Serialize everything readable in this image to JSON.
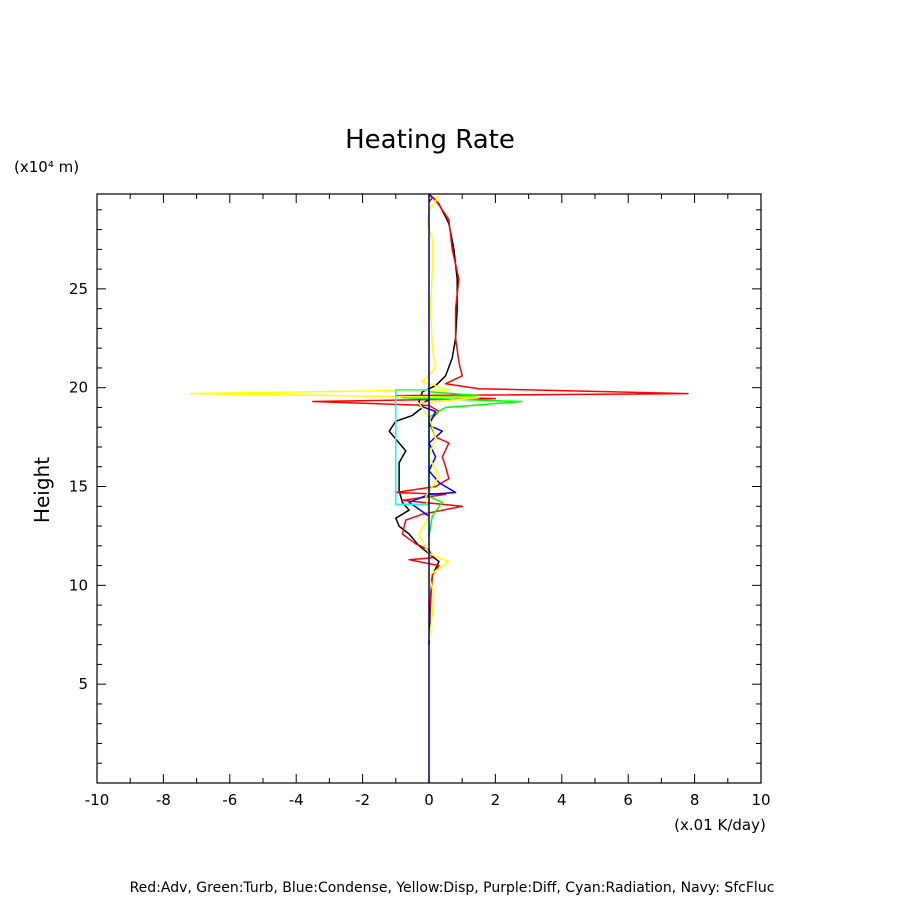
{
  "chart_data": {
    "type": "line",
    "title": "Heating Rate",
    "ylabel": "Height",
    "y_unit": "(x10⁴ m)",
    "x_unit": "(x.01 K/day)",
    "xlim": [
      -10,
      10
    ],
    "ylim": [
      0,
      29.8
    ],
    "x_ticks": [
      -10,
      -8,
      -6,
      -4,
      -2,
      0,
      2,
      4,
      6,
      8,
      10
    ],
    "y_ticks": [
      5,
      10,
      15,
      20,
      25
    ],
    "x_tick_labels": [
      "-10",
      "-8",
      "-6",
      "-4",
      "-2",
      "0",
      "2",
      "4",
      "6",
      "8",
      "10"
    ],
    "y_tick_labels": [
      "5",
      "10",
      "15",
      "20",
      "25"
    ],
    "grid": false,
    "legend_text": "Red:Adv, Green:Turb, Blue:Condense, Yellow:Disp, Purple:Diff, Cyan:Radiation, Navy: SfcFluc",
    "series": [
      {
        "color": "#000000",
        "points": [
          [
            0,
            7.0
          ],
          [
            0.05,
            9.5
          ],
          [
            0.1,
            10.5
          ],
          [
            0.3,
            11.2
          ],
          [
            0,
            11.6
          ],
          [
            -0.3,
            12.0
          ],
          [
            -0.6,
            12.6
          ],
          [
            -0.9,
            13.0
          ],
          [
            -1.0,
            13.4
          ],
          [
            -0.6,
            13.8
          ],
          [
            -0.8,
            14.2
          ],
          [
            -0.9,
            14.8
          ],
          [
            -0.9,
            15.5
          ],
          [
            -0.9,
            16.2
          ],
          [
            -0.7,
            16.8
          ],
          [
            -0.9,
            17.2
          ],
          [
            -1.2,
            17.8
          ],
          [
            -1.0,
            18.3
          ],
          [
            -0.5,
            18.6
          ],
          [
            -0.2,
            19.0
          ],
          [
            -0.3,
            19.3
          ],
          [
            -0.2,
            19.8
          ],
          [
            0.2,
            20.1
          ],
          [
            0.5,
            20.6
          ],
          [
            0.7,
            21.5
          ],
          [
            0.8,
            22.5
          ],
          [
            0.85,
            24.0
          ],
          [
            0.85,
            25.5
          ],
          [
            0.75,
            27.0
          ],
          [
            0.6,
            28.3
          ],
          [
            0.3,
            29.3
          ],
          [
            0,
            29.8
          ]
        ]
      },
      {
        "color": "#ff0000",
        "points": [
          [
            0,
            8.0
          ],
          [
            0.1,
            10.5
          ],
          [
            0.3,
            11.0
          ],
          [
            -0.6,
            11.3
          ],
          [
            0.1,
            11.4
          ],
          [
            0,
            11.8
          ],
          [
            -0.4,
            12.1
          ],
          [
            -0.8,
            12.6
          ],
          [
            -0.7,
            13.3
          ],
          [
            -0.2,
            13.6
          ],
          [
            1.0,
            14.0
          ],
          [
            -0.8,
            14.3
          ],
          [
            0.5,
            14.6
          ],
          [
            -1.0,
            14.7
          ],
          [
            0.2,
            15.0
          ],
          [
            0.6,
            15.4
          ],
          [
            0.5,
            16.0
          ],
          [
            0.4,
            16.5
          ],
          [
            0.6,
            17.2
          ],
          [
            0.2,
            17.5
          ],
          [
            0,
            18.3
          ],
          [
            0.3,
            18.8
          ],
          [
            0,
            19.1
          ],
          [
            -3.5,
            19.3
          ],
          [
            2.0,
            19.45
          ],
          [
            -1.0,
            19.6
          ],
          [
            7.8,
            19.7
          ],
          [
            1.5,
            19.95
          ],
          [
            0.5,
            20.2
          ],
          [
            1.0,
            20.6
          ],
          [
            0.9,
            21.3
          ],
          [
            0.8,
            22.5
          ],
          [
            0.8,
            24.0
          ],
          [
            0.9,
            25.5
          ],
          [
            0.7,
            27.0
          ],
          [
            0.6,
            28.5
          ],
          [
            0.2,
            29.5
          ],
          [
            0,
            29.8
          ]
        ]
      },
      {
        "color": "#00ff00",
        "points": [
          [
            0,
            12.5
          ],
          [
            0.1,
            13.5
          ],
          [
            0.4,
            14.2
          ],
          [
            0,
            14.5
          ],
          [
            0,
            15.5
          ],
          [
            0,
            18.5
          ],
          [
            0.5,
            19.0
          ],
          [
            2.8,
            19.3
          ],
          [
            -0.8,
            19.5
          ],
          [
            1.5,
            19.6
          ],
          [
            0,
            19.8
          ],
          [
            0,
            20.1
          ]
        ]
      },
      {
        "color": "#0000ff",
        "points": [
          [
            0,
            13.5
          ],
          [
            -0.6,
            14.2
          ],
          [
            0,
            14.6
          ],
          [
            0.8,
            14.7
          ],
          [
            0.3,
            15.2
          ],
          [
            0,
            15.8
          ],
          [
            0.2,
            16.5
          ],
          [
            0,
            17.2
          ],
          [
            0.4,
            17.8
          ],
          [
            0,
            18.1
          ],
          [
            0.2,
            18.8
          ],
          [
            -0.3,
            19.1
          ],
          [
            0,
            19.4
          ],
          [
            0,
            20
          ]
        ]
      },
      {
        "color": "#ffff00",
        "points": [
          [
            0,
            7.2
          ],
          [
            0.1,
            8.5
          ],
          [
            0.15,
            9.5
          ],
          [
            0,
            10.5
          ],
          [
            0.6,
            11.2
          ],
          [
            0,
            11.6
          ],
          [
            -0.3,
            12.6
          ],
          [
            0,
            13.5
          ],
          [
            -0.1,
            14.5
          ],
          [
            0.3,
            15.5
          ],
          [
            0,
            16.5
          ],
          [
            0.2,
            17.5
          ],
          [
            0,
            18.5
          ],
          [
            -0.3,
            19.2
          ],
          [
            1.5,
            19.5
          ],
          [
            -7.2,
            19.7
          ],
          [
            0.6,
            19.9
          ],
          [
            -0.2,
            20.3
          ],
          [
            0.2,
            21.0
          ],
          [
            0.1,
            22.0
          ],
          [
            0.05,
            24.0
          ],
          [
            0.1,
            26.0
          ],
          [
            0.1,
            27.5
          ],
          [
            -0.05,
            28.3
          ],
          [
            0,
            29.0
          ],
          [
            0.3,
            29.7
          ]
        ]
      },
      {
        "color": "#800080",
        "points": [
          [
            0,
            29.4
          ],
          [
            0.1,
            29.6
          ],
          [
            0,
            29.8
          ]
        ]
      },
      {
        "color": "#00ffff",
        "points": [
          [
            0,
            14.1
          ],
          [
            -1.0,
            14.1
          ],
          [
            -1.0,
            19.9
          ],
          [
            0,
            19.9
          ]
        ]
      },
      {
        "color": "#000080",
        "points": [
          [
            0,
            0
          ],
          [
            0,
            29.8
          ]
        ]
      }
    ]
  }
}
